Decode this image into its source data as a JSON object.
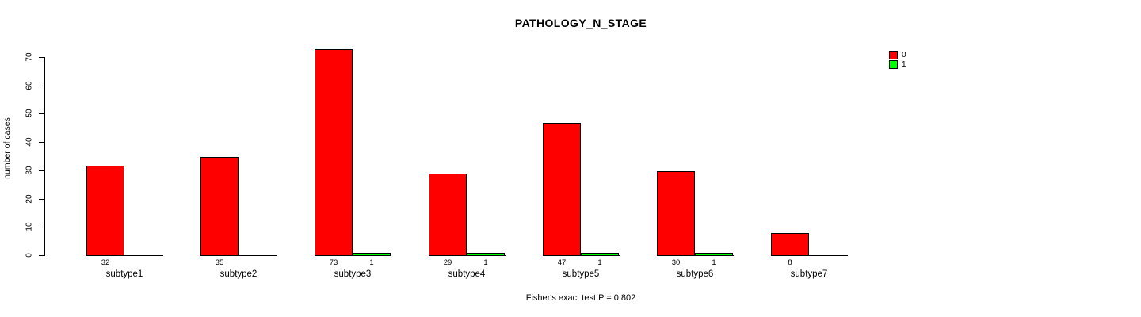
{
  "chart_data": {
    "type": "bar",
    "title": "PATHOLOGY_N_STAGE",
    "ylabel": "number of cases",
    "xlabel": "",
    "caption": "Fisher's exact test P = 0.802",
    "categories": [
      "subtype1",
      "subtype2",
      "subtype3",
      "subtype4",
      "subtype5",
      "subtype6",
      "subtype7"
    ],
    "series": [
      {
        "name": "0",
        "color": "#FF0000",
        "values": [
          32,
          35,
          73,
          29,
          47,
          30,
          8
        ]
      },
      {
        "name": "1",
        "color": "#00FF00",
        "values": [
          0,
          0,
          1,
          1,
          1,
          1,
          0
        ]
      }
    ],
    "ylim": [
      0,
      70
    ],
    "yticks": [
      0,
      10,
      20,
      30,
      40,
      50,
      60,
      70
    ],
    "grid": false,
    "legend_position": "top-right",
    "bar_value_labels_shown": true,
    "background_color": "#FFFFFF",
    "axis_color": "#000000"
  }
}
